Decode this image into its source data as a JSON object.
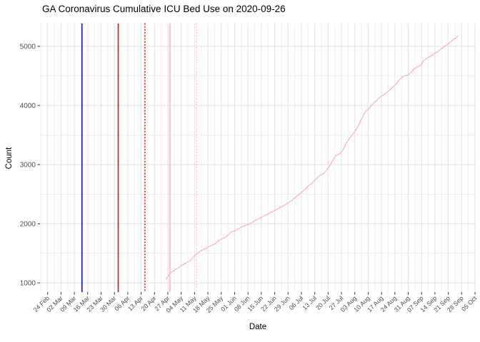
{
  "chart_data": {
    "type": "line",
    "title": "GA Coronavirus Cumulative ICU Bed Use on 2020-09-26",
    "xlabel": "Date",
    "ylabel": "Count",
    "background": "#ffffff",
    "grid": {
      "major_color": "#e2e2e2",
      "minor_color": "#eeeeee",
      "tick_color": "#333333",
      "tick_label_color": "#4d4d4d"
    },
    "x_axis": {
      "start": "2020-02-24",
      "end": "2020-10-05",
      "tick_interval_days": 7,
      "tick_labels": [
        "24 Feb",
        "02 Mar",
        "09 Mar",
        "16 Mar",
        "23 Mar",
        "30 Mar",
        "06 Apr",
        "13 Apr",
        "20 Apr",
        "27 Apr",
        "04 May",
        "11 May",
        "18 May",
        "25 May",
        "01 Jun",
        "08 Jun",
        "15 Jun",
        "22 Jun",
        "29 Jun",
        "06 Jul",
        "13 Jul",
        "20 Jul",
        "27 Jul",
        "03 Aug",
        "10 Aug",
        "17 Aug",
        "24 Aug",
        "31 Aug",
        "07 Sep",
        "14 Sep",
        "21 Sep",
        "28 Sep",
        "05 Oct"
      ]
    },
    "y_axis": {
      "ticks": [
        1000,
        2000,
        3000,
        4000,
        5000
      ],
      "tick_labels": [
        "1000",
        "2000",
        "3000",
        "4000",
        "5000"
      ],
      "minor_step": 500,
      "ylim": [
        850,
        5360
      ]
    },
    "vlines": [
      {
        "date": "2020-03-13",
        "color": "#1414cd",
        "style": "solid",
        "width": 1.6
      },
      {
        "date": "2020-04-01",
        "color": "#d90f0f",
        "style": "solid",
        "width": 1.6
      },
      {
        "date": "2020-04-15",
        "color": "#d90f0f",
        "style": "dotted",
        "width": 1.4
      },
      {
        "date": "2020-04-28",
        "color": "#ffc4ce",
        "style": "solid",
        "width": 2.2
      },
      {
        "date": "2020-05-12",
        "color": "#ffc4ce",
        "style": "dotted",
        "width": 1.4
      }
    ],
    "series": [
      {
        "name": "Cumulative ICU bed use",
        "color": "#f7b0c1",
        "points": [
          [
            "2020-04-26",
            1060
          ],
          [
            "2020-04-27",
            1105
          ],
          [
            "2020-04-28",
            1160
          ],
          [
            "2020-04-29",
            1185
          ],
          [
            "2020-04-30",
            1200
          ],
          [
            "2020-05-01",
            1225
          ],
          [
            "2020-05-02",
            1246
          ],
          [
            "2020-05-03",
            1264
          ],
          [
            "2020-05-04",
            1291
          ],
          [
            "2020-05-05",
            1306
          ],
          [
            "2020-05-06",
            1326
          ],
          [
            "2020-05-07",
            1343
          ],
          [
            "2020-05-08",
            1362
          ],
          [
            "2020-05-09",
            1390
          ],
          [
            "2020-05-10",
            1426
          ],
          [
            "2020-05-11",
            1456
          ],
          [
            "2020-05-12",
            1490
          ],
          [
            "2020-05-13",
            1513
          ],
          [
            "2020-05-14",
            1537
          ],
          [
            "2020-05-15",
            1552
          ],
          [
            "2020-05-16",
            1570
          ],
          [
            "2020-05-17",
            1583
          ],
          [
            "2020-05-18",
            1606
          ],
          [
            "2020-05-19",
            1621
          ],
          [
            "2020-05-20",
            1634
          ],
          [
            "2020-05-21",
            1649
          ],
          [
            "2020-05-22",
            1666
          ],
          [
            "2020-05-23",
            1695
          ],
          [
            "2020-05-24",
            1723
          ],
          [
            "2020-05-25",
            1741
          ],
          [
            "2020-05-26",
            1755
          ],
          [
            "2020-05-27",
            1768
          ],
          [
            "2020-05-28",
            1793
          ],
          [
            "2020-05-29",
            1820
          ],
          [
            "2020-05-30",
            1856
          ],
          [
            "2020-05-31",
            1871
          ],
          [
            "2020-06-01",
            1881
          ],
          [
            "2020-06-02",
            1890
          ],
          [
            "2020-06-03",
            1912
          ],
          [
            "2020-06-04",
            1931
          ],
          [
            "2020-06-05",
            1950
          ],
          [
            "2020-06-06",
            1963
          ],
          [
            "2020-06-08",
            1985
          ],
          [
            "2020-06-10",
            2021
          ],
          [
            "2020-06-12",
            2058
          ],
          [
            "2020-06-14",
            2090
          ],
          [
            "2020-06-16",
            2125
          ],
          [
            "2020-06-18",
            2156
          ],
          [
            "2020-06-20",
            2190
          ],
          [
            "2020-06-22",
            2223
          ],
          [
            "2020-06-24",
            2259
          ],
          [
            "2020-06-26",
            2292
          ],
          [
            "2020-06-28",
            2330
          ],
          [
            "2020-06-29",
            2352
          ],
          [
            "2020-06-30",
            2372
          ],
          [
            "2020-07-01",
            2392
          ],
          [
            "2020-07-02",
            2420
          ],
          [
            "2020-07-03",
            2450
          ],
          [
            "2020-07-04",
            2478
          ],
          [
            "2020-07-05",
            2500
          ],
          [
            "2020-07-06",
            2526
          ],
          [
            "2020-07-07",
            2556
          ],
          [
            "2020-07-08",
            2586
          ],
          [
            "2020-07-09",
            2616
          ],
          [
            "2020-07-10",
            2650
          ],
          [
            "2020-07-11",
            2668
          ],
          [
            "2020-07-12",
            2700
          ],
          [
            "2020-07-13",
            2734
          ],
          [
            "2020-07-14",
            2766
          ],
          [
            "2020-07-15",
            2800
          ],
          [
            "2020-07-16",
            2826
          ],
          [
            "2020-07-17",
            2836
          ],
          [
            "2020-07-18",
            2862
          ],
          [
            "2020-07-19",
            2896
          ],
          [
            "2020-07-20",
            2940
          ],
          [
            "2020-07-21",
            2990
          ],
          [
            "2020-07-22",
            3046
          ],
          [
            "2020-07-23",
            3096
          ],
          [
            "2020-07-24",
            3146
          ],
          [
            "2020-07-25",
            3170
          ],
          [
            "2020-07-26",
            3181
          ],
          [
            "2020-07-27",
            3214
          ],
          [
            "2020-07-28",
            3262
          ],
          [
            "2020-07-29",
            3330
          ],
          [
            "2020-07-30",
            3386
          ],
          [
            "2020-07-31",
            3432
          ],
          [
            "2020-08-01",
            3480
          ],
          [
            "2020-08-02",
            3520
          ],
          [
            "2020-08-03",
            3560
          ],
          [
            "2020-08-04",
            3612
          ],
          [
            "2020-08-05",
            3662
          ],
          [
            "2020-08-06",
            3740
          ],
          [
            "2020-08-07",
            3800
          ],
          [
            "2020-08-08",
            3874
          ],
          [
            "2020-08-09",
            3910
          ],
          [
            "2020-08-10",
            3934
          ],
          [
            "2020-08-11",
            3972
          ],
          [
            "2020-08-12",
            4008
          ],
          [
            "2020-08-13",
            4042
          ],
          [
            "2020-08-14",
            4076
          ],
          [
            "2020-08-15",
            4102
          ],
          [
            "2020-08-16",
            4136
          ],
          [
            "2020-08-17",
            4158
          ],
          [
            "2020-08-18",
            4175
          ],
          [
            "2020-08-19",
            4200
          ],
          [
            "2020-08-20",
            4226
          ],
          [
            "2020-08-21",
            4256
          ],
          [
            "2020-08-22",
            4282
          ],
          [
            "2020-08-23",
            4310
          ],
          [
            "2020-08-24",
            4342
          ],
          [
            "2020-08-25",
            4376
          ],
          [
            "2020-08-26",
            4420
          ],
          [
            "2020-08-27",
            4456
          ],
          [
            "2020-08-28",
            4484
          ],
          [
            "2020-08-29",
            4502
          ],
          [
            "2020-08-30",
            4508
          ],
          [
            "2020-08-31",
            4515
          ],
          [
            "2020-09-01",
            4548
          ],
          [
            "2020-09-02",
            4581
          ],
          [
            "2020-09-03",
            4616
          ],
          [
            "2020-09-04",
            4640
          ],
          [
            "2020-09-05",
            4655
          ],
          [
            "2020-09-06",
            4670
          ],
          [
            "2020-09-07",
            4690
          ],
          [
            "2020-09-08",
            4756
          ],
          [
            "2020-09-09",
            4780
          ],
          [
            "2020-09-10",
            4801
          ],
          [
            "2020-09-11",
            4822
          ],
          [
            "2020-09-12",
            4840
          ],
          [
            "2020-09-13",
            4861
          ],
          [
            "2020-09-14",
            4882
          ],
          [
            "2020-09-15",
            4900
          ],
          [
            "2020-09-16",
            4920
          ],
          [
            "2020-09-17",
            4952
          ],
          [
            "2020-09-18",
            4980
          ],
          [
            "2020-09-19",
            5001
          ],
          [
            "2020-09-20",
            5022
          ],
          [
            "2020-09-21",
            5042
          ],
          [
            "2020-09-22",
            5070
          ],
          [
            "2020-09-23",
            5096
          ],
          [
            "2020-09-24",
            5120
          ],
          [
            "2020-09-25",
            5146
          ],
          [
            "2020-09-26",
            5172
          ]
        ]
      }
    ]
  }
}
